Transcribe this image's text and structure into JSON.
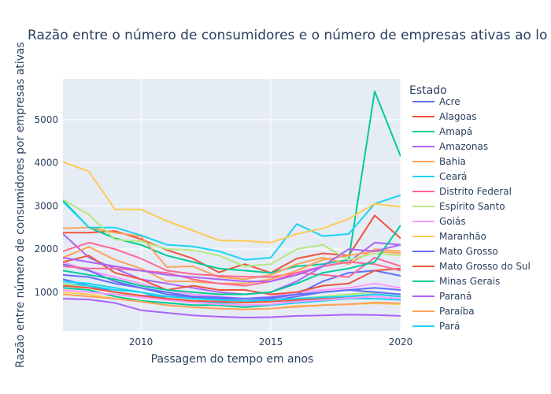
{
  "chart_data": {
    "type": "line",
    "title": "Razão entre o número de consumidores e o número de empresas ativas ao lo",
    "xlabel": "Passagem do tempo em anos",
    "ylabel": "Razão entre número de consumidores por empresas ativas",
    "xlim": [
      2007,
      2020
    ],
    "ylim": [
      100,
      5950
    ],
    "x_ticks": [
      2010,
      2015,
      2020
    ],
    "y_ticks": [
      1000,
      2000,
      3000,
      4000,
      5000
    ],
    "plot_background": "#e5ecf6",
    "grid": true,
    "legend_title": "Estado",
    "legend_placement": "right",
    "x": [
      2007,
      2008,
      2009,
      2010,
      2011,
      2012,
      2013,
      2014,
      2015,
      2016,
      2017,
      2018,
      2019,
      2020
    ],
    "series": [
      {
        "name": "Acre",
        "color": "#636efa",
        "values": [
          1300,
          1150,
          1000,
          920,
          900,
          870,
          850,
          800,
          850,
          950,
          1250,
          1450,
          1500,
          1380
        ]
      },
      {
        "name": "Alagoas",
        "color": "#EF553B",
        "values": [
          2380,
          2380,
          2420,
          2230,
          1980,
          1780,
          1460,
          1650,
          1450,
          1780,
          1900,
          1850,
          2780,
          2250
        ]
      },
      {
        "name": "Amapá",
        "color": "#00cc96",
        "values": [
          3130,
          2500,
          2250,
          2100,
          1850,
          1700,
          1550,
          1500,
          1450,
          1600,
          1650,
          1750,
          5660,
          4150
        ]
      },
      {
        "name": "Amazonas",
        "color": "#ab63fa",
        "values": [
          2350,
          1800,
          1550,
          1300,
          1200,
          1100,
          1000,
          950,
          1000,
          1250,
          1600,
          1700,
          2150,
          2100
        ]
      },
      {
        "name": "Bahia",
        "color": "#FFA15A",
        "values": [
          2480,
          2500,
          2380,
          2300,
          1580,
          1600,
          1350,
          1300,
          1400,
          1650,
          1800,
          1650,
          2000,
          1950
        ]
      },
      {
        "name": "Ceará",
        "color": "#19d3f3",
        "values": [
          3100,
          2500,
          2500,
          2320,
          2100,
          2060,
          1950,
          1750,
          1800,
          2580,
          2300,
          2350,
          3050,
          3250
        ]
      },
      {
        "name": "Distrito Federal",
        "color": "#FF6692",
        "values": [
          1950,
          2150,
          2000,
          1780,
          1500,
          1420,
          1380,
          1360,
          1350,
          1450,
          1400,
          1350,
          1800,
          1600
        ]
      },
      {
        "name": "Espírito Santo",
        "color": "#B6E880",
        "values": [
          3150,
          2800,
          2220,
          2180,
          2000,
          1980,
          1850,
          1600,
          1650,
          2000,
          2100,
          1750,
          1900,
          1850
        ]
      },
      {
        "name": "Goiás",
        "color": "#FF97FF",
        "values": [
          1700,
          1500,
          1350,
          1200,
          1050,
          950,
          900,
          850,
          900,
          1000,
          1050,
          1100,
          1200,
          1100
        ]
      },
      {
        "name": "Maranhão",
        "color": "#FECB52",
        "values": [
          4020,
          3800,
          2920,
          2920,
          2650,
          2430,
          2200,
          2190,
          2150,
          2350,
          2480,
          2700,
          3050,
          2980
        ]
      },
      {
        "name": "Mato Grosso",
        "color": "#636efa",
        "values": [
          1650,
          1500,
          1250,
          1100,
          950,
          900,
          850,
          800,
          800,
          900,
          1000,
          1050,
          1100,
          1050
        ]
      },
      {
        "name": "Mato Grosso do Sul",
        "color": "#EF553B",
        "values": [
          1700,
          1850,
          1450,
          1300,
          1050,
          1150,
          1050,
          1050,
          950,
          1000,
          1150,
          1200,
          1500,
          1550
        ]
      },
      {
        "name": "Minas Gerais",
        "color": "#00cc96",
        "values": [
          1100,
          1050,
          900,
          800,
          750,
          700,
          700,
          650,
          700,
          800,
          850,
          900,
          950,
          900
        ]
      },
      {
        "name": "Paraná",
        "color": "#ab63fa",
        "values": [
          850,
          830,
          750,
          580,
          520,
          460,
          430,
          410,
          420,
          450,
          460,
          480,
          470,
          450
        ]
      },
      {
        "name": "Paraíba",
        "color": "#FFA15A",
        "values": [
          1800,
          2050,
          1750,
          1550,
          1250,
          1250,
          1200,
          1200,
          1300,
          1500,
          1750,
          1850,
          1950,
          1900
        ]
      },
      {
        "name": "Pará",
        "color": "#19d3f3",
        "values": [
          1200,
          1150,
          1050,
          1000,
          850,
          800,
          750,
          700,
          700,
          750,
          800,
          850,
          850,
          820
        ]
      },
      {
        "name": "",
        "color": "#FF6692",
        "values": [
          1600,
          1550,
          1550,
          1500,
          1450,
          1300,
          1200,
          1150,
          1250,
          1450,
          1600,
          1700,
          1650,
          1500
        ]
      },
      {
        "name": "",
        "color": "#B6E880",
        "values": [
          1200,
          1100,
          1000,
          900,
          850,
          800,
          780,
          760,
          780,
          850,
          900,
          950,
          1000,
          950
        ]
      },
      {
        "name": "",
        "color": "#FF97FF",
        "values": [
          1050,
          1000,
          950,
          880,
          820,
          760,
          720,
          700,
          720,
          780,
          820,
          860,
          900,
          850
        ]
      },
      {
        "name": "",
        "color": "#FECB52",
        "values": [
          1000,
          950,
          850,
          780,
          700,
          650,
          620,
          600,
          620,
          680,
          700,
          720,
          740,
          720
        ]
      },
      {
        "name": "",
        "color": "#636efa",
        "values": [
          1400,
          1350,
          1200,
          1100,
          1000,
          900,
          880,
          850,
          880,
          950,
          1000,
          1050,
          1000,
          950
        ]
      },
      {
        "name": "",
        "color": "#EF553B",
        "values": [
          1150,
          1100,
          1000,
          920,
          850,
          800,
          780,
          760,
          780,
          820,
          860,
          900,
          950,
          900
        ]
      },
      {
        "name": "",
        "color": "#00cc96",
        "values": [
          1500,
          1400,
          1300,
          1150,
          1050,
          1000,
          950,
          950,
          1000,
          1200,
          1450,
          1550,
          1700,
          2550
        ]
      },
      {
        "name": "",
        "color": "#ab63fa",
        "values": [
          1800,
          1700,
          1600,
          1500,
          1400,
          1350,
          1300,
          1250,
          1250,
          1400,
          1600,
          2000,
          1950,
          2100
        ]
      },
      {
        "name": "",
        "color": "#FFA15A",
        "values": [
          950,
          900,
          850,
          780,
          700,
          650,
          620,
          600,
          620,
          660,
          700,
          720,
          760,
          740
        ]
      },
      {
        "name": "",
        "color": "#19d3f3",
        "values": [
          1250,
          1200,
          1100,
          1000,
          900,
          850,
          820,
          800,
          820,
          850,
          880,
          900,
          950,
          900
        ]
      }
    ]
  }
}
